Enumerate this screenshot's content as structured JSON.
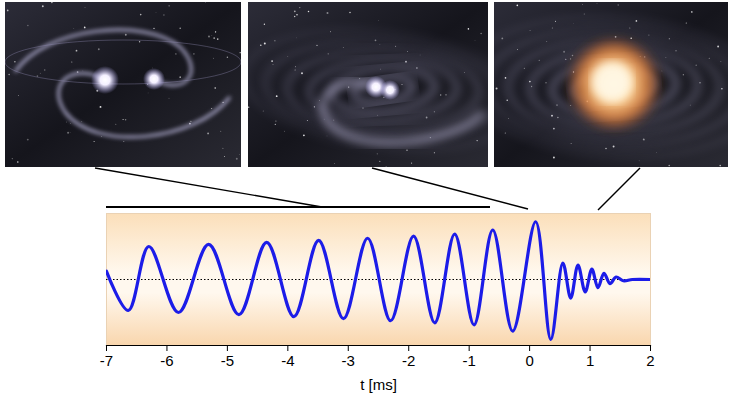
{
  "chart_data": {
    "type": "line",
    "x": [
      -7.0,
      -6.64,
      -6.3,
      -5.81,
      -5.31,
      -4.81,
      -4.35,
      -3.9,
      -3.49,
      -3.08,
      -2.68,
      -2.3,
      -1.92,
      -1.57,
      -1.24,
      -0.92,
      -0.61,
      -0.28,
      0.1,
      0.35,
      0.55,
      0.68,
      0.8,
      0.92,
      1.03,
      1.13,
      1.23,
      1.33,
      1.43,
      1.55,
      1.7,
      2.0
    ],
    "series": [
      {
        "color": "#1c1ce8",
        "values": [
          0.2,
          -0.75,
          0.8,
          -0.8,
          0.85,
          -0.85,
          0.9,
          -0.9,
          0.95,
          -0.95,
          1.0,
          -1.0,
          1.05,
          -1.05,
          1.1,
          -1.1,
          1.2,
          -1.25,
          1.4,
          -1.45,
          0.4,
          -0.45,
          0.35,
          -0.3,
          0.25,
          -0.2,
          0.15,
          -0.1,
          0.06,
          -0.03,
          0,
          0
        ]
      }
    ],
    "xlabel": "t [ms]",
    "xlim": [
      -7,
      2
    ],
    "xticks": [
      -7,
      -6,
      -5,
      -4,
      -3,
      -2,
      -1,
      0,
      1,
      2
    ],
    "ylim": [
      -1.6,
      1.6
    ],
    "yticks": [
      0
    ],
    "grid": "y",
    "tick_labels": "x"
  }
}
